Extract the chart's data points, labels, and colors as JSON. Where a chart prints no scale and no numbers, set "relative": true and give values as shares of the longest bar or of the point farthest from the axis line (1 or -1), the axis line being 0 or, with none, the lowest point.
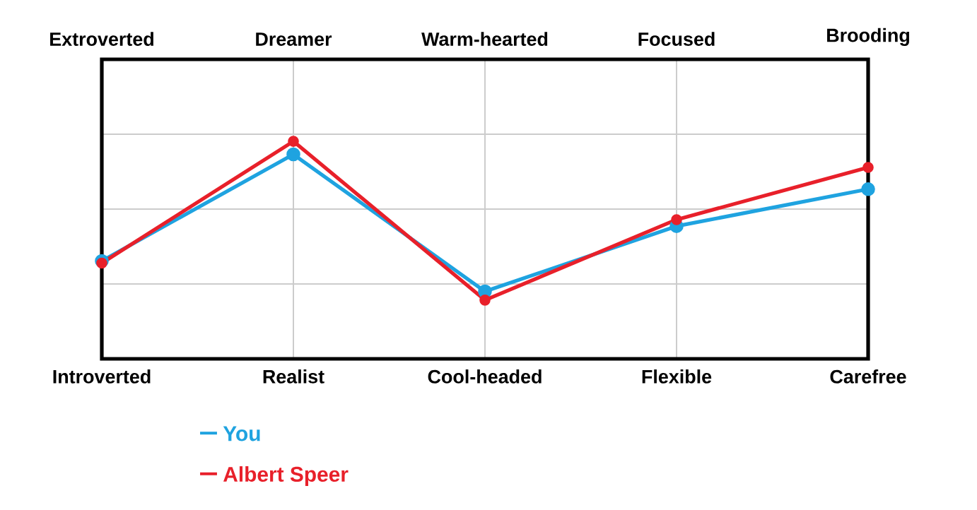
{
  "chart_data": {
    "type": "line",
    "relative": true,
    "categories": [
      "Introverted",
      "Realist",
      "Cool-headed",
      "Flexible",
      "Carefree"
    ],
    "annotations": [
      "Extroverted",
      "Dreamer",
      "Warm-hearted",
      "Focused",
      "Brooding"
    ],
    "series": [
      {
        "name": "You",
        "color": "#1fa3e0",
        "values": [
          0.45,
          0.94,
          0.31,
          0.61,
          0.78
        ]
      },
      {
        "name": "Albert Speer",
        "color": "#e8202a",
        "values": [
          0.44,
          1,
          0.27,
          0.64,
          0.88
        ]
      }
    ],
    "grid": true,
    "legend": "bottom left",
    "marker": "circle",
    "line_style": "solid"
  }
}
